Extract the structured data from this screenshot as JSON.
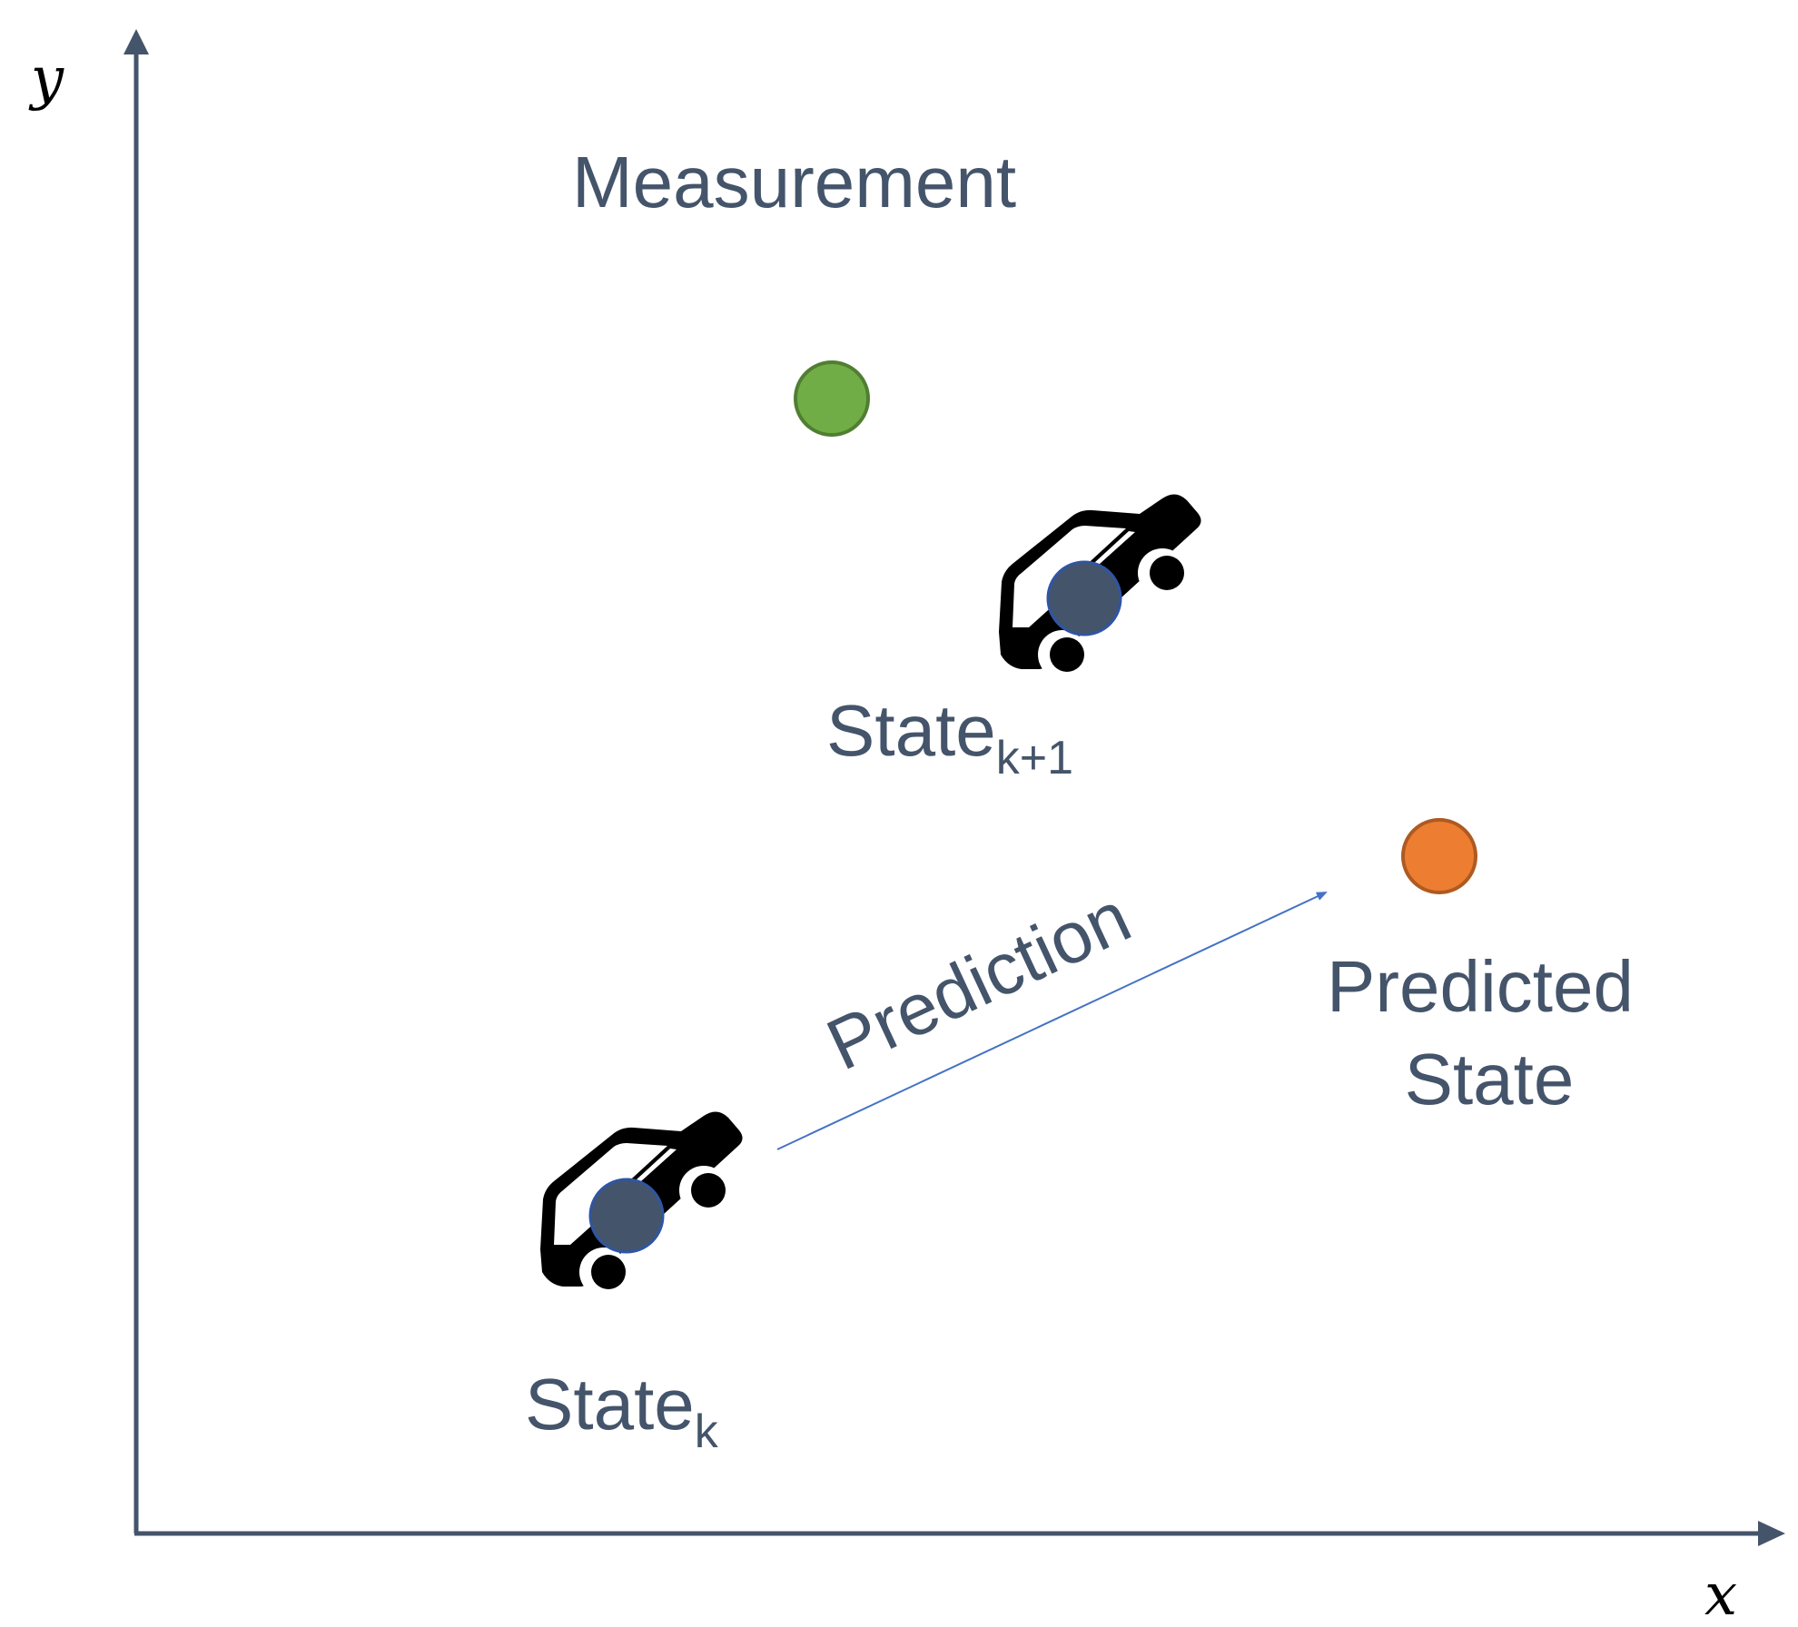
{
  "axes": {
    "x_label": "x",
    "y_label": "y",
    "color": "#44546a"
  },
  "labels": {
    "measurement": "Measurement",
    "state_k": "State",
    "state_k_sub": "k",
    "state_k1": "State",
    "state_k1_sub": "k+1",
    "prediction": "Prediction",
    "predicted_line1": "Predicted",
    "predicted_line2": "State"
  },
  "colors": {
    "measurement_dot": "#70ad47",
    "predicted_dot": "#ed7d31",
    "state_dot": "#44546a",
    "arrow": "#4472c4",
    "text": "#44546a",
    "car": "#000000"
  },
  "icons": {
    "car": "car-icon"
  }
}
